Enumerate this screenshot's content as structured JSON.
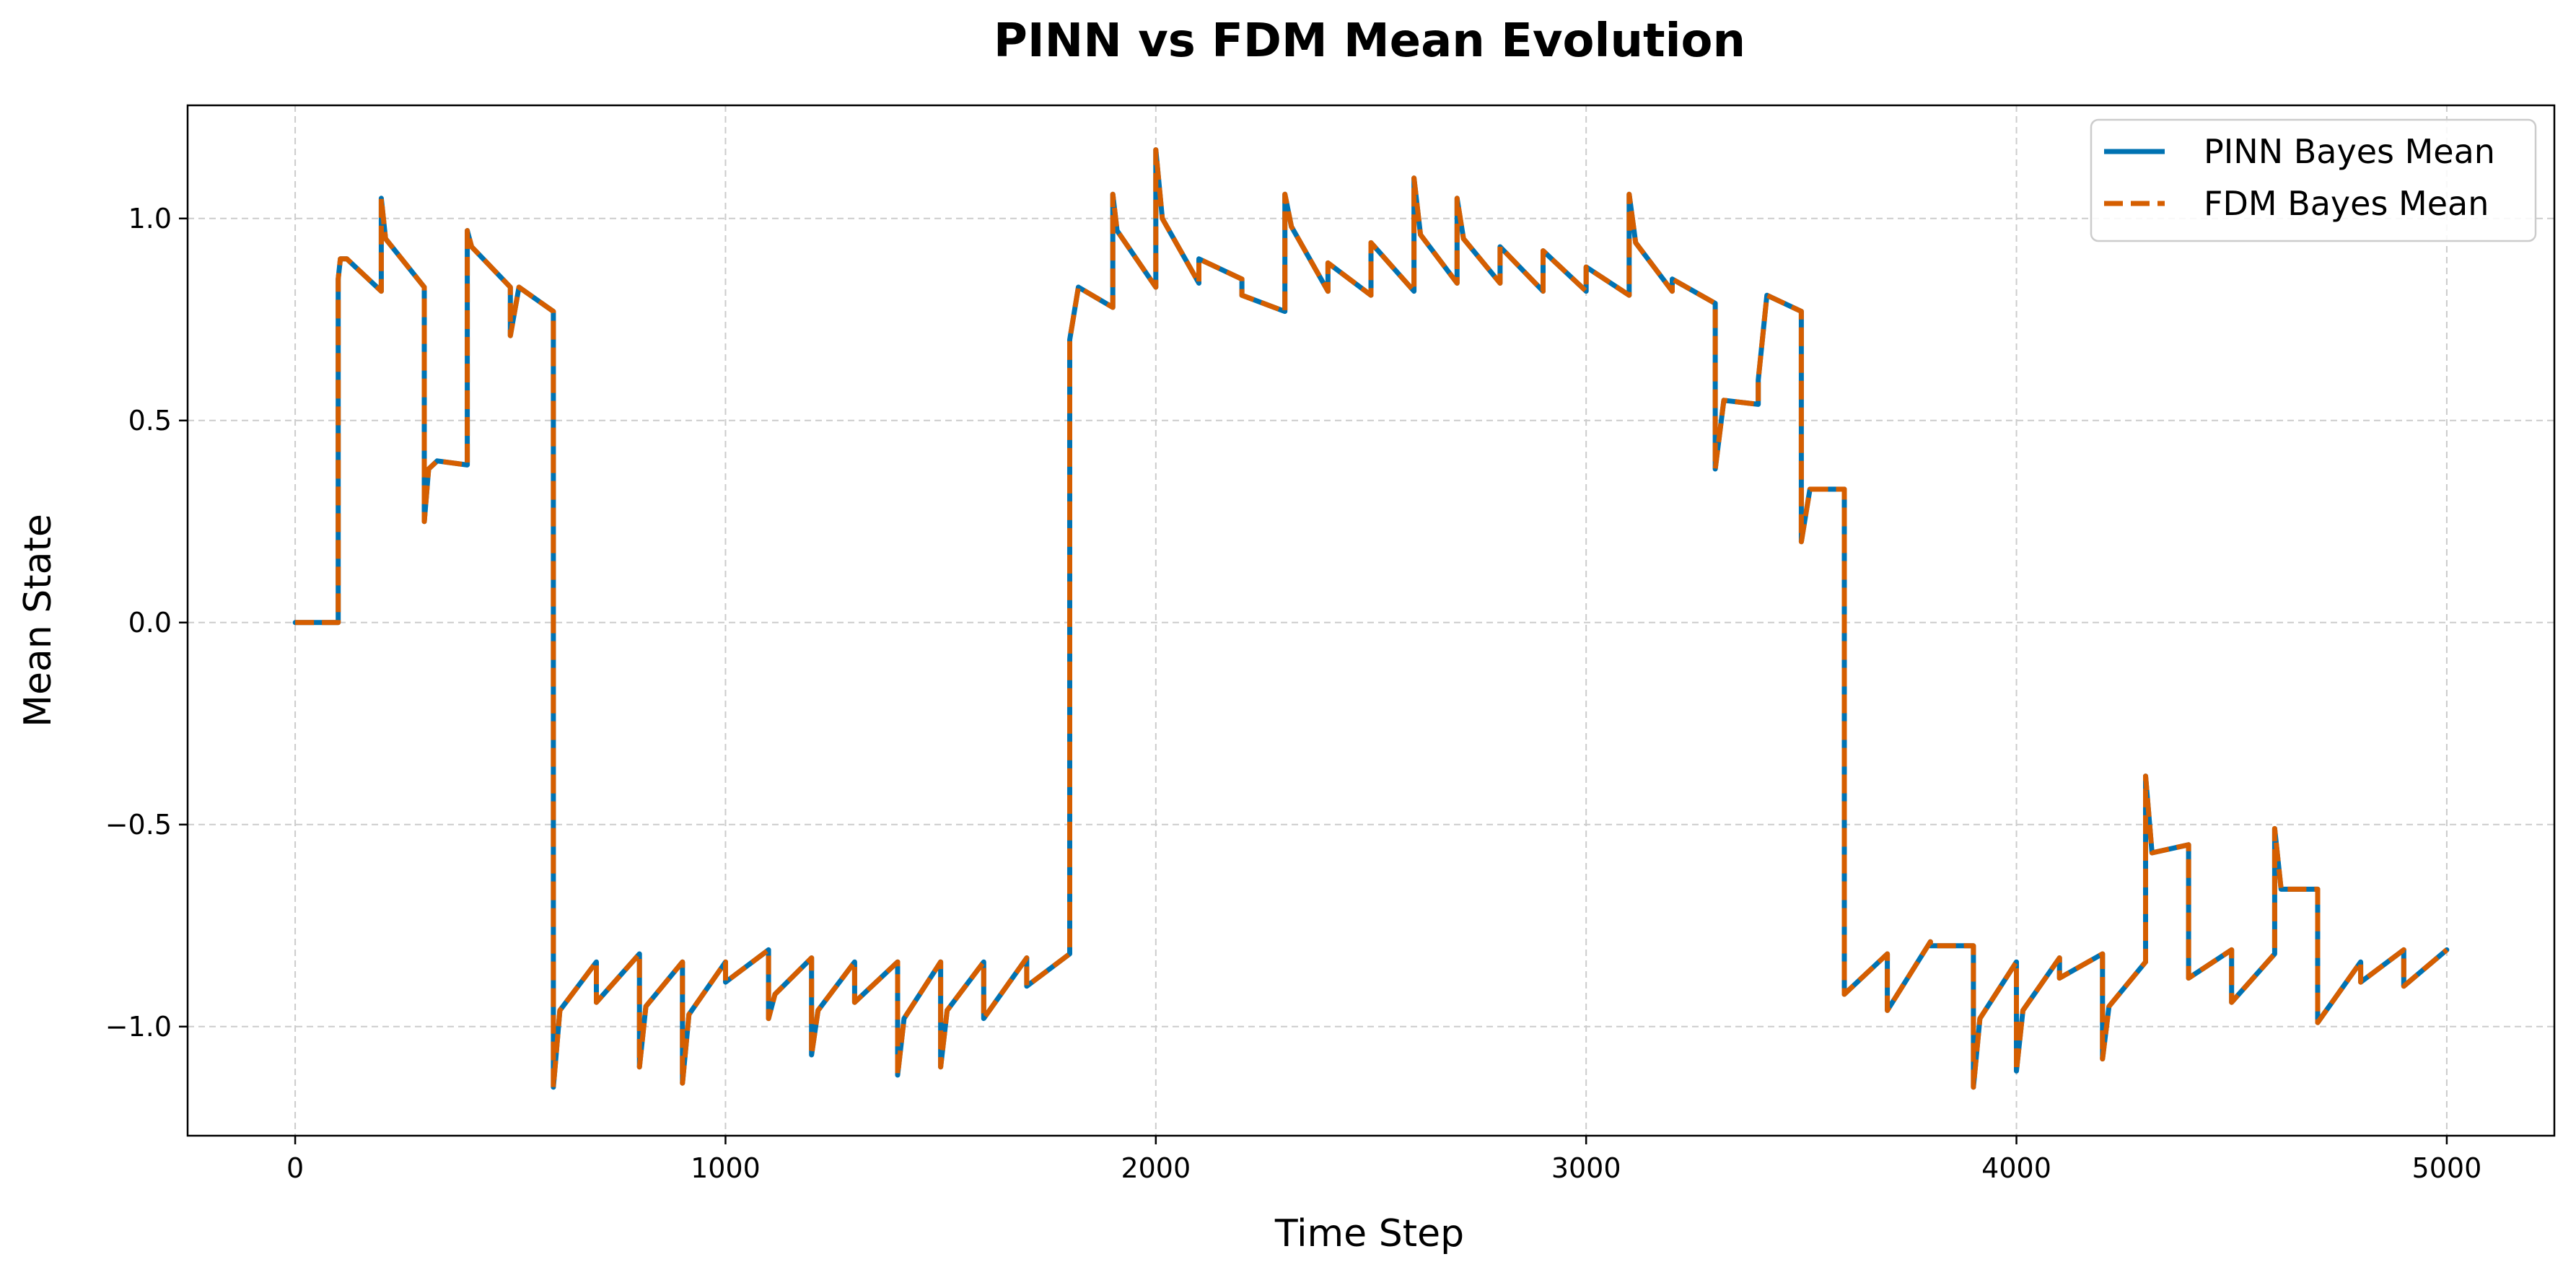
{
  "chart_data": {
    "type": "line",
    "title": "PINN vs FDM Mean Evolution",
    "xlabel": "Time Step",
    "ylabel": "Mean State",
    "xlim": [
      -250,
      5250
    ],
    "ylim": [
      -1.27,
      1.28
    ],
    "xticks": [
      0,
      1000,
      2000,
      3000,
      4000,
      5000
    ],
    "xtick_labels": [
      "0",
      "1000",
      "2000",
      "3000",
      "4000",
      "5000"
    ],
    "yticks": [
      -1.0,
      -0.5,
      0.0,
      0.5,
      1.0
    ],
    "ytick_labels": [
      "−1.0",
      "−0.5",
      "0.0",
      "0.5",
      "1.0"
    ],
    "grid": true,
    "legend_position": "top-right",
    "colors": {
      "pinn": "#0072B2",
      "fdm": "#D55E00",
      "grid": "#cccccc"
    },
    "series": [
      {
        "name": "PINN Bayes Mean",
        "style": "solid",
        "x": [
          0,
          100,
          100,
          105,
          120,
          200,
          200,
          210,
          300,
          300,
          310,
          330,
          400,
          400,
          410,
          500,
          500,
          520,
          600,
          600,
          615,
          700,
          700,
          800,
          800,
          815,
          900,
          900,
          915,
          1000,
          1000,
          1100,
          1100,
          1115,
          1200,
          1200,
          1215,
          1300,
          1300,
          1400,
          1400,
          1415,
          1500,
          1500,
          1515,
          1600,
          1600,
          1700,
          1700,
          1800,
          1800,
          1820,
          1900,
          1900,
          1910,
          2000,
          2000,
          2015,
          2100,
          2100,
          2200,
          2200,
          2300,
          2300,
          2315,
          2400,
          2400,
          2500,
          2500,
          2600,
          2600,
          2615,
          2700,
          2700,
          2715,
          2800,
          2800,
          2900,
          2900,
          3000,
          3000,
          3100,
          3100,
          3115,
          3200,
          3200,
          3300,
          3300,
          3320,
          3400,
          3400,
          3420,
          3500,
          3500,
          3520,
          3600,
          3600,
          3620,
          3700,
          3700,
          3800,
          3800,
          3900,
          3900,
          3915,
          4000,
          4000,
          4015,
          4100,
          4100,
          4200,
          4200,
          4215,
          4300,
          4300,
          4315,
          4400,
          4400,
          4500,
          4500,
          4600,
          4600,
          4615,
          4700,
          4700,
          4800,
          4800,
          4900,
          4900,
          5000
        ],
        "y": [
          0.0,
          0.0,
          0.85,
          0.9,
          0.9,
          0.82,
          1.05,
          0.95,
          0.83,
          0.25,
          0.38,
          0.4,
          0.39,
          0.97,
          0.93,
          0.83,
          0.71,
          0.83,
          0.77,
          -1.15,
          -0.96,
          -0.84,
          -0.94,
          -0.82,
          -1.1,
          -0.95,
          -0.84,
          -1.14,
          -0.97,
          -0.84,
          -0.89,
          -0.81,
          -0.98,
          -0.92,
          -0.83,
          -1.07,
          -0.96,
          -0.84,
          -0.94,
          -0.84,
          -1.12,
          -0.98,
          -0.84,
          -1.1,
          -0.96,
          -0.84,
          -0.98,
          -0.83,
          -0.9,
          -0.82,
          0.7,
          0.83,
          0.78,
          1.06,
          0.97,
          0.83,
          1.17,
          1.0,
          0.84,
          0.9,
          0.85,
          0.81,
          0.77,
          1.06,
          0.98,
          0.82,
          0.89,
          0.81,
          0.94,
          0.82,
          1.1,
          0.96,
          0.84,
          1.05,
          0.95,
          0.84,
          0.93,
          0.82,
          0.92,
          0.82,
          0.88,
          0.81,
          1.06,
          0.94,
          0.82,
          0.85,
          0.79,
          0.38,
          0.55,
          0.54,
          0.6,
          0.81,
          0.77,
          0.2,
          0.33,
          0.33,
          -0.92,
          -0.9,
          -0.82,
          -0.96,
          -0.79,
          -0.8,
          -0.8,
          -1.15,
          -0.98,
          -0.84,
          -1.11,
          -0.96,
          -0.83,
          -0.88,
          -0.82,
          -1.08,
          -0.95,
          -0.84,
          -0.38,
          -0.57,
          -0.55,
          -0.88,
          -0.81,
          -0.94,
          -0.82,
          -0.51,
          -0.66,
          -0.66,
          -0.99,
          -0.84,
          -0.89,
          -0.81,
          -0.9,
          -0.81
        ]
      },
      {
        "name": "FDM Bayes Mean",
        "style": "dashed",
        "x": [
          0,
          100,
          100,
          105,
          120,
          200,
          200,
          210,
          300,
          300,
          310,
          330,
          400,
          400,
          410,
          500,
          500,
          520,
          600,
          600,
          615,
          700,
          700,
          800,
          800,
          815,
          900,
          900,
          915,
          1000,
          1000,
          1100,
          1100,
          1115,
          1200,
          1200,
          1215,
          1300,
          1300,
          1400,
          1400,
          1415,
          1500,
          1500,
          1515,
          1600,
          1600,
          1700,
          1700,
          1800,
          1800,
          1820,
          1900,
          1900,
          1910,
          2000,
          2000,
          2015,
          2100,
          2100,
          2200,
          2200,
          2300,
          2300,
          2315,
          2400,
          2400,
          2500,
          2500,
          2600,
          2600,
          2615,
          2700,
          2700,
          2715,
          2800,
          2800,
          2900,
          2900,
          3000,
          3000,
          3100,
          3100,
          3115,
          3200,
          3200,
          3300,
          3300,
          3320,
          3400,
          3400,
          3420,
          3500,
          3500,
          3520,
          3600,
          3600,
          3620,
          3700,
          3700,
          3800,
          3800,
          3900,
          3900,
          3915,
          4000,
          4000,
          4015,
          4100,
          4100,
          4200,
          4200,
          4215,
          4300,
          4300,
          4315,
          4400,
          4400,
          4500,
          4500,
          4600,
          4600,
          4615,
          4700,
          4700,
          4800,
          4800,
          4900,
          4900,
          5000
        ],
        "y": [
          0.0,
          0.0,
          0.85,
          0.9,
          0.9,
          0.82,
          1.05,
          0.95,
          0.83,
          0.25,
          0.38,
          0.4,
          0.39,
          0.97,
          0.93,
          0.83,
          0.71,
          0.83,
          0.77,
          -1.15,
          -0.96,
          -0.84,
          -0.94,
          -0.82,
          -1.1,
          -0.95,
          -0.84,
          -1.14,
          -0.97,
          -0.84,
          -0.89,
          -0.81,
          -0.98,
          -0.92,
          -0.83,
          -1.07,
          -0.96,
          -0.84,
          -0.94,
          -0.84,
          -1.12,
          -0.98,
          -0.84,
          -1.1,
          -0.96,
          -0.84,
          -0.98,
          -0.83,
          -0.9,
          -0.82,
          0.7,
          0.83,
          0.78,
          1.06,
          0.97,
          0.83,
          1.17,
          1.0,
          0.84,
          0.9,
          0.85,
          0.81,
          0.77,
          1.06,
          0.98,
          0.82,
          0.89,
          0.81,
          0.94,
          0.82,
          1.1,
          0.96,
          0.84,
          1.05,
          0.95,
          0.84,
          0.93,
          0.82,
          0.92,
          0.82,
          0.88,
          0.81,
          1.06,
          0.94,
          0.82,
          0.85,
          0.79,
          0.38,
          0.55,
          0.54,
          0.6,
          0.81,
          0.77,
          0.2,
          0.33,
          0.33,
          -0.92,
          -0.9,
          -0.82,
          -0.96,
          -0.79,
          -0.8,
          -0.8,
          -1.15,
          -0.98,
          -0.84,
          -1.11,
          -0.96,
          -0.83,
          -0.88,
          -0.82,
          -1.08,
          -0.95,
          -0.84,
          -0.38,
          -0.57,
          -0.55,
          -0.88,
          -0.81,
          -0.94,
          -0.82,
          -0.51,
          -0.66,
          -0.66,
          -0.99,
          -0.84,
          -0.89,
          -0.81,
          -0.9,
          -0.81
        ]
      }
    ]
  }
}
